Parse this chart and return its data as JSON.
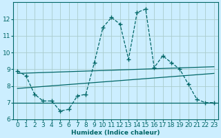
{
  "title": "",
  "xlabel": "Humidex (Indice chaleur)",
  "bg_color": "#cceeff",
  "grid_color": "#aacccc",
  "line_color": "#006666",
  "xlim": [
    -0.5,
    23.5
  ],
  "ylim": [
    6,
    13
  ],
  "yticks": [
    6,
    7,
    8,
    9,
    10,
    11,
    12
  ],
  "xticks": [
    0,
    1,
    2,
    3,
    4,
    5,
    6,
    7,
    8,
    9,
    10,
    11,
    12,
    13,
    14,
    15,
    16,
    17,
    18,
    19,
    20,
    21,
    22,
    23
  ],
  "series1_x": [
    0,
    1,
    2,
    3,
    4,
    5,
    6,
    7,
    8,
    9,
    10,
    11,
    12,
    13,
    14,
    15,
    16,
    17,
    18,
    19,
    20,
    21,
    22,
    23
  ],
  "series1_y": [
    8.9,
    8.6,
    7.5,
    7.1,
    7.1,
    6.5,
    6.6,
    7.4,
    7.5,
    9.4,
    11.5,
    12.1,
    11.7,
    9.6,
    12.4,
    12.6,
    9.1,
    9.8,
    9.4,
    9.0,
    8.1,
    7.2,
    7.0,
    7.0
  ],
  "trend1_x": [
    0,
    23
  ],
  "trend1_y": [
    8.75,
    9.15
  ],
  "trend2_x": [
    0,
    23
  ],
  "trend2_y": [
    7.85,
    8.75
  ],
  "hline_y": 7.0,
  "font_size": 6.5
}
